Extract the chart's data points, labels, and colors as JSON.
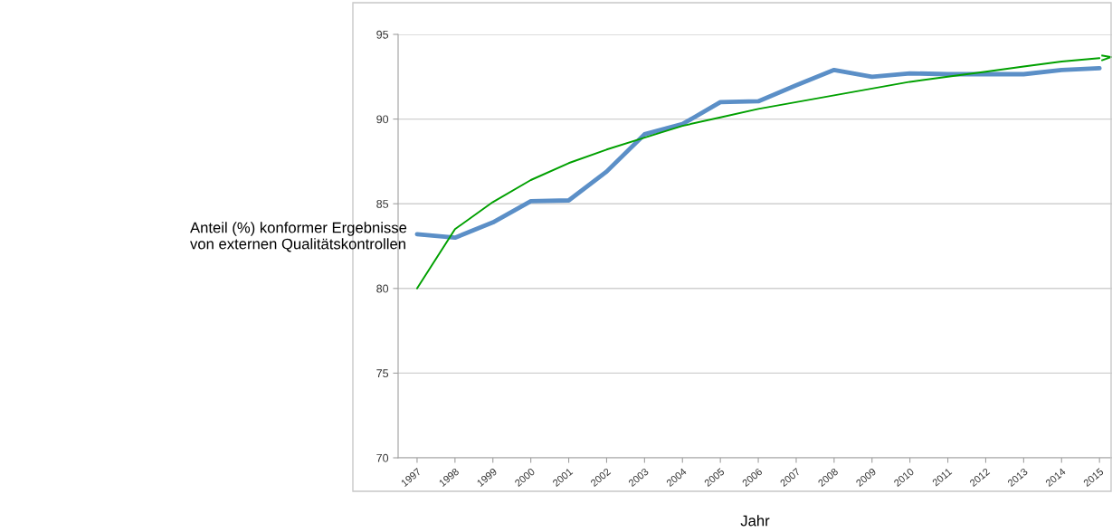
{
  "chart_data": {
    "type": "line",
    "xlabel": "Jahr",
    "ylabel": "Anteil (%) konformer Ergebnisse\nvon externen Qualitätskontrollen",
    "categories": [
      "1997",
      "1998",
      "1999",
      "2000",
      "2001",
      "2002",
      "2003",
      "2004",
      "2005",
      "2006",
      "2007",
      "2008",
      "2009",
      "2010",
      "2011",
      "2012",
      "2013",
      "2014",
      "2015"
    ],
    "series": [
      {
        "color": "#5b8fc7",
        "values": [
          83.2,
          83.0,
          83.9,
          85.15,
          85.2,
          86.9,
          89.1,
          89.7,
          91.0,
          91.05,
          92.0,
          92.9,
          92.5,
          92.7,
          92.65,
          92.65,
          92.65,
          92.9,
          93.0
        ]
      },
      {
        "color": "#00a000",
        "values": [
          80.0,
          83.5,
          85.1,
          86.4,
          87.4,
          88.2,
          88.9,
          89.6,
          90.1,
          90.6,
          91.0,
          91.4,
          91.8,
          92.2,
          92.5,
          92.8,
          93.1,
          93.4,
          93.6
        ]
      }
    ],
    "ylim": [
      70,
      95
    ],
    "yticks": [
      70,
      75,
      80,
      85,
      90,
      95
    ],
    "grid": "y",
    "legend": false,
    "marker": "none",
    "line_style": "solid"
  }
}
